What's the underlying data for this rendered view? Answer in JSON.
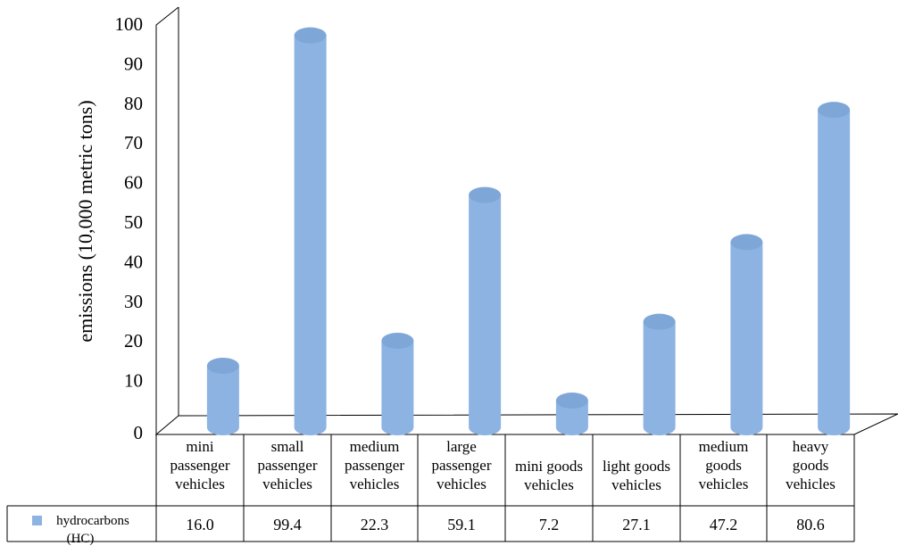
{
  "chart_data": {
    "type": "bar",
    "ylabel": "emissions (10,000 metric tons)",
    "ylim": [
      0,
      100
    ],
    "yticks": [
      0,
      10,
      20,
      30,
      40,
      50,
      60,
      70,
      80,
      90,
      100
    ],
    "categories": [
      [
        "mini",
        "passenger",
        "vehicles"
      ],
      [
        "small",
        "passenger",
        "vehicles"
      ],
      [
        "medium",
        "passenger",
        "vehicles"
      ],
      [
        "large",
        "passenger",
        "vehicles"
      ],
      [
        "mini goods",
        "vehicles"
      ],
      [
        "light goods",
        "vehicles"
      ],
      [
        "medium",
        "goods",
        "vehicles"
      ],
      [
        "heavy",
        "goods",
        "vehicles"
      ]
    ],
    "series": [
      {
        "name": [
          "hydrocarbons",
          "(HC)"
        ],
        "values": [
          16.0,
          99.4,
          22.3,
          59.1,
          7.2,
          27.1,
          47.2,
          80.6
        ],
        "value_labels": [
          "16.0",
          "99.4",
          "22.3",
          "59.1",
          "7.2",
          "27.1",
          "47.2",
          "80.6"
        ],
        "color": "#8db3e2"
      }
    ],
    "grid": false,
    "legend": "data-table"
  }
}
